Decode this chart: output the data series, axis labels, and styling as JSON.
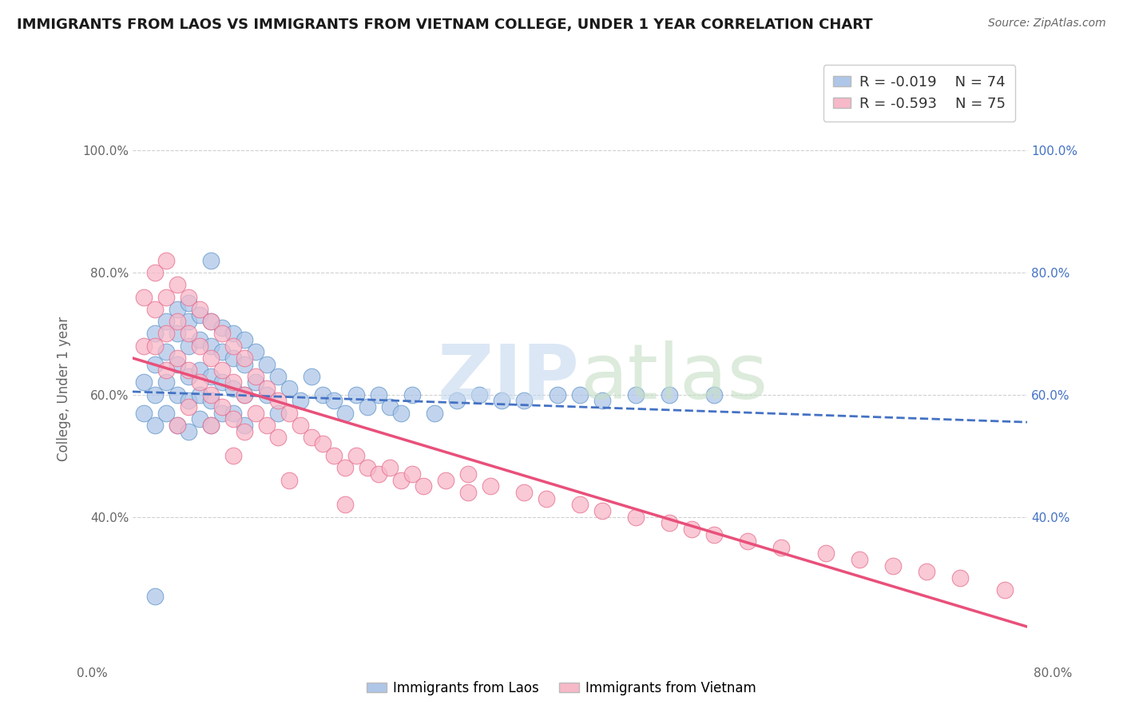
{
  "title": "IMMIGRANTS FROM LAOS VS IMMIGRANTS FROM VIETNAM COLLEGE, UNDER 1 YEAR CORRELATION CHART",
  "source": "Source: ZipAtlas.com",
  "ylabel": "College, Under 1 year",
  "xmin": 0.0,
  "xmax": 0.8,
  "ymin": 0.18,
  "ymax": 1.04,
  "laos_color": "#aec6e8",
  "laos_edge_color": "#6699cc",
  "vietnam_color": "#f7b8c8",
  "vietnam_edge_color": "#e87090",
  "laos_line_color": "#4472c4",
  "vietnam_line_color": "#e8507a",
  "laos_R": -0.019,
  "laos_N": 74,
  "vietnam_R": -0.593,
  "vietnam_N": 75,
  "background_color": "#ffffff",
  "grid_color": "#d0d0d0",
  "yticks": [
    0.4,
    0.6,
    0.8,
    1.0
  ],
  "right_ytick_color": "#4472c4",
  "laos_x": [
    0.01,
    0.01,
    0.02,
    0.02,
    0.02,
    0.02,
    0.03,
    0.03,
    0.03,
    0.03,
    0.04,
    0.04,
    0.04,
    0.04,
    0.04,
    0.05,
    0.05,
    0.05,
    0.05,
    0.05,
    0.05,
    0.06,
    0.06,
    0.06,
    0.06,
    0.06,
    0.07,
    0.07,
    0.07,
    0.07,
    0.07,
    0.08,
    0.08,
    0.08,
    0.08,
    0.09,
    0.09,
    0.09,
    0.09,
    0.1,
    0.1,
    0.1,
    0.1,
    0.11,
    0.11,
    0.12,
    0.12,
    0.13,
    0.13,
    0.14,
    0.15,
    0.16,
    0.17,
    0.18,
    0.19,
    0.2,
    0.21,
    0.22,
    0.23,
    0.24,
    0.25,
    0.27,
    0.29,
    0.31,
    0.33,
    0.35,
    0.38,
    0.4,
    0.42,
    0.45,
    0.48,
    0.52,
    0.02,
    0.07
  ],
  "laos_y": [
    0.62,
    0.57,
    0.7,
    0.65,
    0.6,
    0.55,
    0.72,
    0.67,
    0.62,
    0.57,
    0.74,
    0.7,
    0.65,
    0.6,
    0.55,
    0.75,
    0.72,
    0.68,
    0.63,
    0.59,
    0.54,
    0.73,
    0.69,
    0.64,
    0.6,
    0.56,
    0.72,
    0.68,
    0.63,
    0.59,
    0.55,
    0.71,
    0.67,
    0.62,
    0.57,
    0.7,
    0.66,
    0.61,
    0.57,
    0.69,
    0.65,
    0.6,
    0.55,
    0.67,
    0.62,
    0.65,
    0.6,
    0.63,
    0.57,
    0.61,
    0.59,
    0.63,
    0.6,
    0.59,
    0.57,
    0.6,
    0.58,
    0.6,
    0.58,
    0.57,
    0.6,
    0.57,
    0.59,
    0.6,
    0.59,
    0.59,
    0.6,
    0.6,
    0.59,
    0.6,
    0.6,
    0.6,
    0.27,
    0.82
  ],
  "vietnam_x": [
    0.01,
    0.01,
    0.02,
    0.02,
    0.02,
    0.03,
    0.03,
    0.03,
    0.03,
    0.04,
    0.04,
    0.04,
    0.05,
    0.05,
    0.05,
    0.05,
    0.06,
    0.06,
    0.06,
    0.07,
    0.07,
    0.07,
    0.07,
    0.08,
    0.08,
    0.08,
    0.09,
    0.09,
    0.09,
    0.1,
    0.1,
    0.1,
    0.11,
    0.11,
    0.12,
    0.12,
    0.13,
    0.13,
    0.14,
    0.15,
    0.16,
    0.17,
    0.18,
    0.19,
    0.2,
    0.21,
    0.22,
    0.23,
    0.24,
    0.25,
    0.26,
    0.28,
    0.3,
    0.3,
    0.32,
    0.35,
    0.37,
    0.4,
    0.42,
    0.45,
    0.48,
    0.5,
    0.52,
    0.55,
    0.58,
    0.62,
    0.65,
    0.68,
    0.71,
    0.74,
    0.78,
    0.04,
    0.09,
    0.14,
    0.19
  ],
  "vietnam_y": [
    0.76,
    0.68,
    0.8,
    0.74,
    0.68,
    0.82,
    0.76,
    0.7,
    0.64,
    0.78,
    0.72,
    0.66,
    0.76,
    0.7,
    0.64,
    0.58,
    0.74,
    0.68,
    0.62,
    0.72,
    0.66,
    0.6,
    0.55,
    0.7,
    0.64,
    0.58,
    0.68,
    0.62,
    0.56,
    0.66,
    0.6,
    0.54,
    0.63,
    0.57,
    0.61,
    0.55,
    0.59,
    0.53,
    0.57,
    0.55,
    0.53,
    0.52,
    0.5,
    0.48,
    0.5,
    0.48,
    0.47,
    0.48,
    0.46,
    0.47,
    0.45,
    0.46,
    0.47,
    0.44,
    0.45,
    0.44,
    0.43,
    0.42,
    0.41,
    0.4,
    0.39,
    0.38,
    0.37,
    0.36,
    0.35,
    0.34,
    0.33,
    0.32,
    0.31,
    0.3,
    0.28,
    0.55,
    0.5,
    0.46,
    0.42
  ]
}
